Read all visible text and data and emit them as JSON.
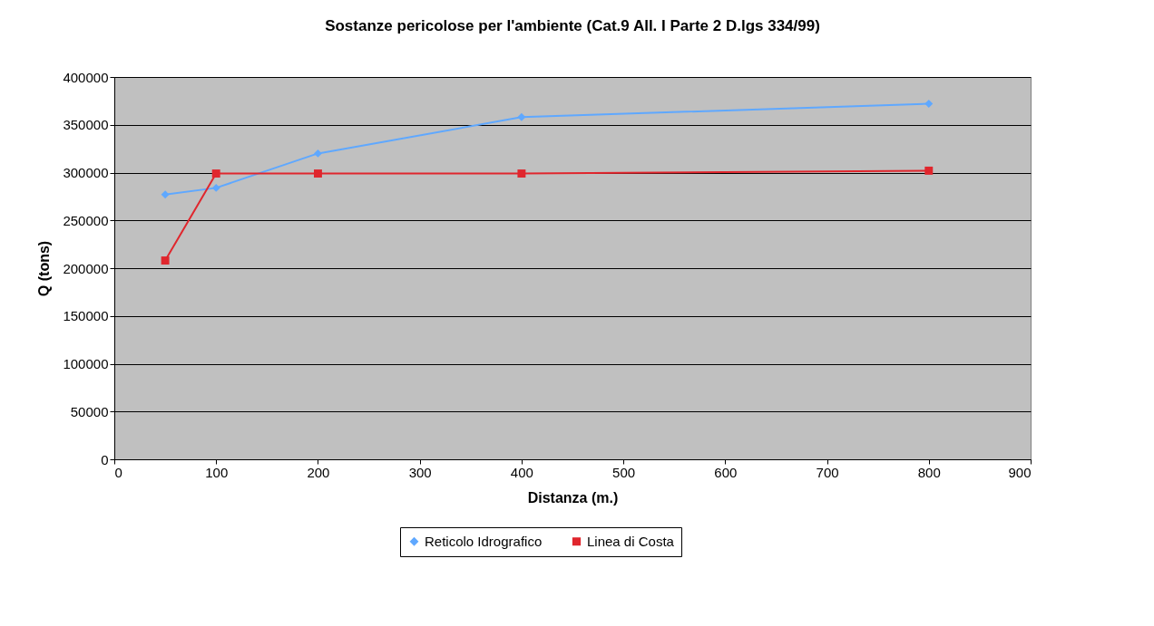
{
  "chart_data": {
    "type": "line",
    "title": "Sostanze pericolose per l'ambiente (Cat.9 All. I Parte 2  D.lgs 334/99)",
    "xlabel": "Distanza (m.)",
    "ylabel": "Q (tons)",
    "x": [
      50,
      100,
      200,
      400,
      800
    ],
    "series": [
      {
        "name": "Reticolo Idrografico",
        "color": "#5fa8ff",
        "marker": "diamond",
        "values": [
          277000,
          284000,
          320000,
          358000,
          372000
        ]
      },
      {
        "name": "Linea di Costa",
        "color": "#e0262d",
        "marker": "square",
        "values": [
          208000,
          299000,
          299000,
          299000,
          302000
        ]
      }
    ],
    "xlim": [
      0,
      900
    ],
    "xticks": [
      0,
      100,
      200,
      300,
      400,
      500,
      600,
      700,
      800,
      900
    ],
    "ylim": [
      0,
      400000
    ],
    "yticks": [
      0,
      50000,
      100000,
      150000,
      200000,
      250000,
      300000,
      350000,
      400000
    ],
    "grid": "y",
    "legend": "bottom",
    "line_style": "solid"
  }
}
